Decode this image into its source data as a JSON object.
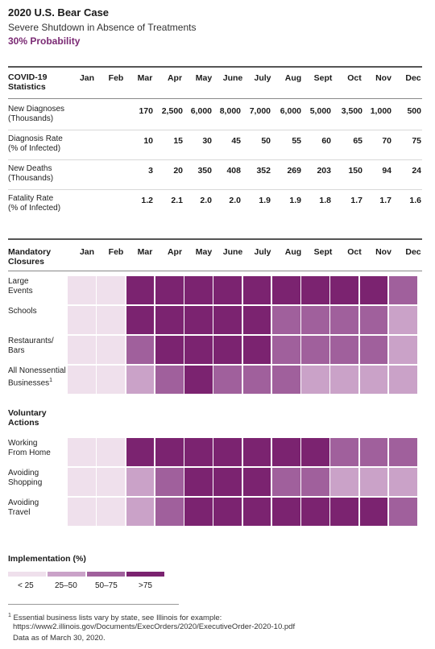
{
  "header": {
    "title": "2020 U.S. Bear Case",
    "subtitle": "Severe Shutdown in Absence of Treatments",
    "probability": "30% Probability"
  },
  "months": [
    "Jan",
    "Feb",
    "Mar",
    "Apr",
    "May",
    "June",
    "July",
    "Aug",
    "Sept",
    "Oct",
    "Nov",
    "Dec"
  ],
  "stats_table": {
    "header_label": [
      "COVID-19",
      "Statistics"
    ],
    "rows": [
      {
        "label": [
          "New Diagnoses",
          "(Thousands)"
        ],
        "values": [
          "",
          "",
          "170",
          "2,500",
          "6,000",
          "8,000",
          "7,000",
          "6,000",
          "5,000",
          "3,500",
          "1,000",
          "500"
        ]
      },
      {
        "label": [
          "Diagnosis Rate",
          "(% of Infected)"
        ],
        "values": [
          "",
          "",
          "10",
          "15",
          "30",
          "45",
          "50",
          "55",
          "60",
          "65",
          "70",
          "75"
        ]
      },
      {
        "label": [
          "New Deaths",
          "(Thousands)"
        ],
        "values": [
          "",
          "",
          "3",
          "20",
          "350",
          "408",
          "352",
          "269",
          "203",
          "150",
          "94",
          "24"
        ]
      },
      {
        "label": [
          "Fatality Rate",
          "(% of Infected)"
        ],
        "values": [
          "",
          "",
          "1.2",
          "2.1",
          "2.0",
          "2.0",
          "1.9",
          "1.9",
          "1.8",
          "1.7",
          "1.7",
          "1.6"
        ]
      }
    ]
  },
  "chart_data": {
    "type": "heatmap",
    "title": "Implementation (%)",
    "level_labels": [
      "< 25",
      "25–50",
      "50–75",
      ">75"
    ],
    "colors": [
      "#efe0ec",
      "#caa2c8",
      "#a0609c",
      "#7b2370"
    ],
    "categories": [
      "Jan",
      "Feb",
      "Mar",
      "Apr",
      "May",
      "June",
      "July",
      "Aug",
      "Sept",
      "Oct",
      "Nov",
      "Dec"
    ],
    "groups": [
      {
        "name": [
          "Mandatory",
          "Closures"
        ],
        "rows": [
          {
            "label": [
              "Large",
              "Events"
            ],
            "levels": [
              0,
              0,
              3,
              3,
              3,
              3,
              3,
              3,
              3,
              3,
              3,
              2
            ]
          },
          {
            "label": [
              "Schools"
            ],
            "levels": [
              0,
              0,
              3,
              3,
              3,
              3,
              3,
              2,
              2,
              2,
              2,
              1
            ]
          },
          {
            "label": [
              "Restaurants/",
              "Bars"
            ],
            "levels": [
              0,
              0,
              2,
              3,
              3,
              3,
              3,
              2,
              2,
              2,
              2,
              1
            ]
          },
          {
            "label": [
              "All Nonessential",
              "Businesses"
            ],
            "superscript": "1",
            "levels": [
              0,
              0,
              1,
              2,
              3,
              2,
              2,
              2,
              1,
              1,
              1,
              1
            ]
          }
        ]
      },
      {
        "name": [
          "Voluntary",
          "Actions"
        ],
        "rows": [
          {
            "label": [
              "Working",
              "From Home"
            ],
            "levels": [
              0,
              0,
              3,
              3,
              3,
              3,
              3,
              3,
              3,
              2,
              2,
              2
            ]
          },
          {
            "label": [
              "Avoiding",
              "Shopping"
            ],
            "levels": [
              0,
              0,
              1,
              2,
              3,
              3,
              3,
              2,
              2,
              1,
              1,
              1
            ]
          },
          {
            "label": [
              "Avoiding",
              "Travel"
            ],
            "levels": [
              0,
              0,
              1,
              2,
              3,
              3,
              3,
              3,
              3,
              3,
              3,
              2
            ]
          }
        ]
      }
    ]
  },
  "footnotes": [
    "Essential business lists vary by state, see Illinois for example:",
    "https://www2.illinois.gov/Documents/ExecOrders/2020/ExecutiveOrder-2020-10.pdf",
    "Data as of March 30, 2020."
  ],
  "footnote_marker": "1"
}
